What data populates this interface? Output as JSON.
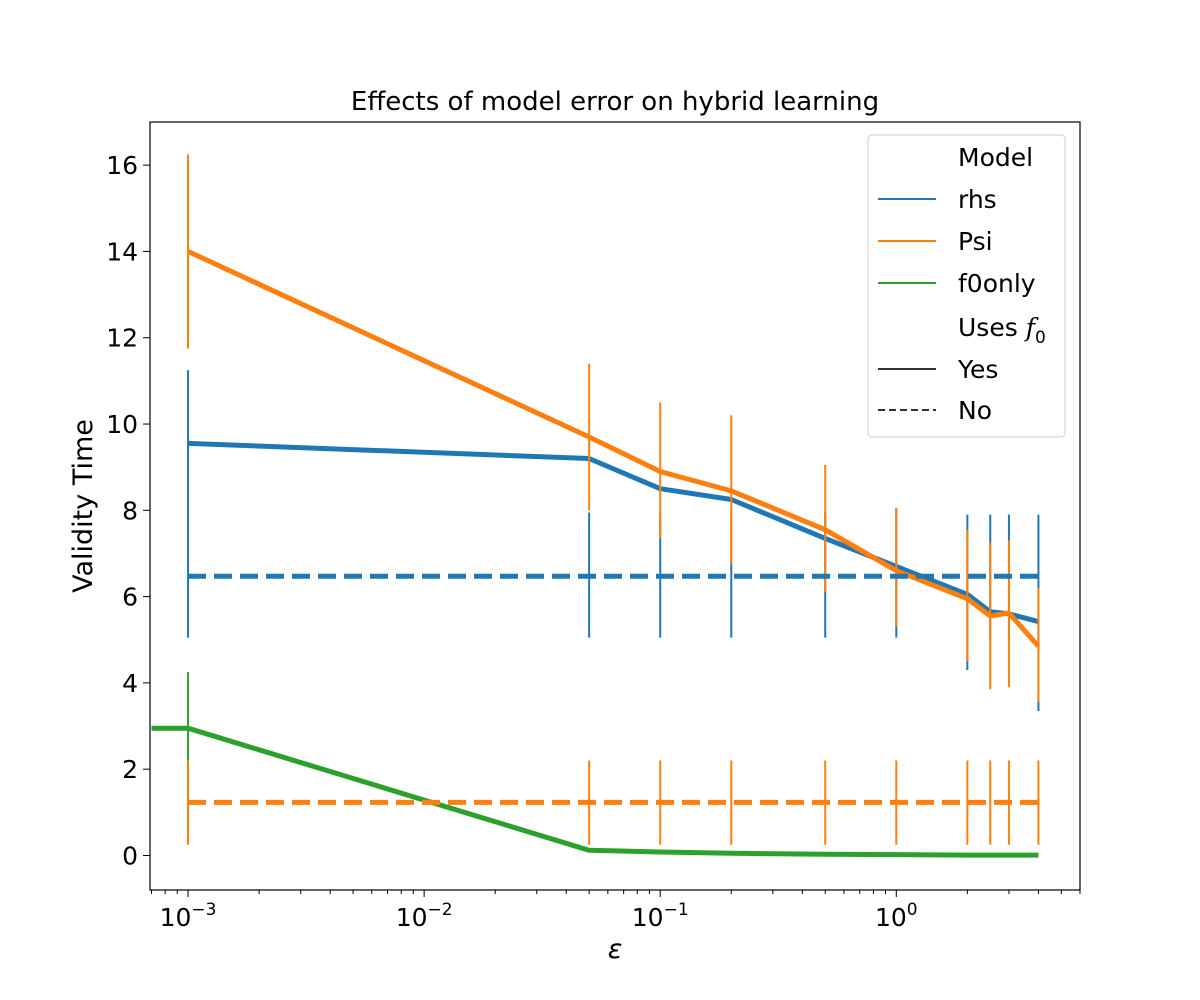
{
  "chart_data": {
    "type": "line",
    "title": "Effects of model error on hybrid learning",
    "xlabel": "ε",
    "ylabel": "Validity Time",
    "xscale": "log",
    "xlim": [
      0.00069,
      6.0
    ],
    "ylim": [
      -0.8,
      17.0
    ],
    "grid": false,
    "legend_position": "upper-right",
    "x_tick_labels": [
      {
        "value": 0.001,
        "base": "10",
        "exp": "−3"
      },
      {
        "value": 0.01,
        "base": "10",
        "exp": "−2"
      },
      {
        "value": 0.1,
        "base": "10",
        "exp": "−1"
      },
      {
        "value": 1,
        "base": "10",
        "exp": "0"
      }
    ],
    "y_ticks": [
      0,
      2,
      4,
      6,
      8,
      10,
      12,
      14,
      16
    ],
    "legend": {
      "model_header": "Model",
      "model_entries": [
        {
          "label": "rhs",
          "color": "#1f77b4"
        },
        {
          "label": "Psi",
          "color": "#ff7f0e"
        },
        {
          "label": "f0only",
          "color": "#2ca02c"
        }
      ],
      "uses_header_prefix": "Uses ",
      "uses_header_symbol": "f",
      "uses_header_sub": "0",
      "uses_entries": [
        {
          "label": "Yes",
          "dash": "solid"
        },
        {
          "label": "No",
          "dash": "dashed"
        }
      ]
    },
    "series": [
      {
        "name": "rhs",
        "uses_f0": "Yes",
        "color": "#1f77b4",
        "style": "solid",
        "x": [
          0.001,
          0.05,
          0.1,
          0.2,
          0.5,
          1.0,
          2.0,
          2.5,
          3.0,
          4.0
        ],
        "y": [
          9.55,
          9.2,
          8.5,
          8.25,
          7.35,
          6.7,
          6.05,
          5.65,
          5.6,
          5.42
        ],
        "err_low": [
          5.05,
          5.05,
          5.05,
          5.05,
          5.05,
          5.05,
          4.3,
          5.0,
          5.0,
          3.35
        ],
        "err_high": [
          11.25,
          7.95,
          7.95,
          7.95,
          7.95,
          8.05,
          7.9,
          7.9,
          7.9,
          7.9
        ]
      },
      {
        "name": "Psi",
        "uses_f0": "Yes",
        "color": "#ff7f0e",
        "style": "solid",
        "x": [
          0.001,
          0.05,
          0.1,
          0.2,
          0.5,
          1.0,
          2.0,
          2.5,
          3.0,
          4.0
        ],
        "y": [
          14.0,
          9.7,
          8.9,
          8.45,
          7.55,
          6.6,
          5.95,
          5.55,
          5.62,
          4.85
        ],
        "err_low": [
          11.75,
          8.0,
          7.35,
          6.75,
          6.1,
          5.3,
          4.5,
          3.85,
          3.9,
          3.55
        ],
        "err_high": [
          16.25,
          11.4,
          10.5,
          10.2,
          9.05,
          8.05,
          7.55,
          7.25,
          7.3,
          6.2
        ]
      },
      {
        "name": "f0only",
        "uses_f0": "Yes",
        "color": "#2ca02c",
        "style": "solid",
        "x": [
          0.0007,
          0.001,
          0.05,
          0.1,
          0.2,
          0.5,
          1.0,
          2.0,
          4.0
        ],
        "y": [
          2.95,
          2.95,
          0.12,
          0.08,
          0.05,
          0.03,
          0.02,
          0.01,
          0.01
        ],
        "err_low": [
          null,
          1.7,
          null,
          null,
          null,
          null,
          null,
          null,
          null
        ],
        "err_high": [
          null,
          4.25,
          null,
          null,
          null,
          null,
          null,
          null,
          null
        ]
      },
      {
        "name": "rhs",
        "uses_f0": "No",
        "color": "#1f77b4",
        "style": "dashed",
        "x": [
          0.001,
          0.05,
          0.1,
          0.2,
          0.5,
          1.0,
          2.0,
          2.5,
          3.0,
          4.0
        ],
        "y": [
          6.47,
          6.47,
          6.47,
          6.47,
          6.47,
          6.47,
          6.47,
          6.47,
          6.47,
          6.47
        ],
        "err_low": [
          null,
          null,
          null,
          null,
          null,
          null,
          null,
          null,
          null,
          null
        ],
        "err_high": [
          null,
          null,
          null,
          null,
          null,
          null,
          null,
          null,
          null,
          null
        ]
      },
      {
        "name": "Psi",
        "uses_f0": "No",
        "color": "#ff7f0e",
        "style": "dashed",
        "x": [
          0.001,
          0.05,
          0.1,
          0.2,
          0.5,
          1.0,
          2.0,
          2.5,
          3.0,
          4.0
        ],
        "y": [
          1.23,
          1.23,
          1.23,
          1.23,
          1.23,
          1.23,
          1.23,
          1.23,
          1.23,
          1.23
        ],
        "err_low": [
          0.25,
          0.25,
          0.25,
          0.25,
          0.25,
          0.25,
          0.25,
          0.25,
          0.25,
          0.25
        ],
        "err_high": [
          2.2,
          2.2,
          2.2,
          2.2,
          2.2,
          2.2,
          2.2,
          2.2,
          2.2,
          2.2
        ]
      }
    ]
  }
}
